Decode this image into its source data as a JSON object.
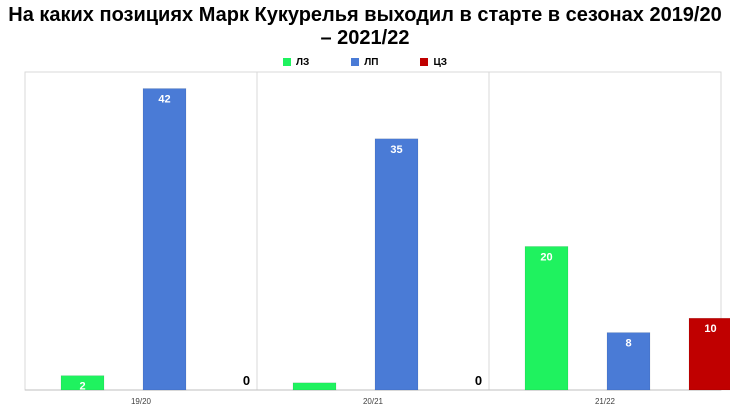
{
  "chart_data": {
    "type": "bar",
    "title": "На каких позициях Марк Кукурелья выходил в старте в сезонах 2019/20 – 2021/22",
    "categories": [
      "19/20",
      "20/21",
      "21/22"
    ],
    "series": [
      {
        "name": "ЛЗ",
        "color": "#1ff25f",
        "values": [
          2,
          1,
          20
        ],
        "labels": [
          "2",
          "",
          "20"
        ]
      },
      {
        "name": "ЛП",
        "color": "#4a7bd6",
        "values": [
          42,
          35,
          8
        ],
        "labels": [
          "42",
          "35",
          "8"
        ]
      },
      {
        "name": "ЦЗ",
        "color": "#c00000",
        "values": [
          0,
          0,
          10
        ],
        "labels": [
          "0",
          "0",
          "10"
        ]
      }
    ],
    "ylim": [
      0,
      45
    ],
    "legend_position": "top-center",
    "grid": false
  }
}
